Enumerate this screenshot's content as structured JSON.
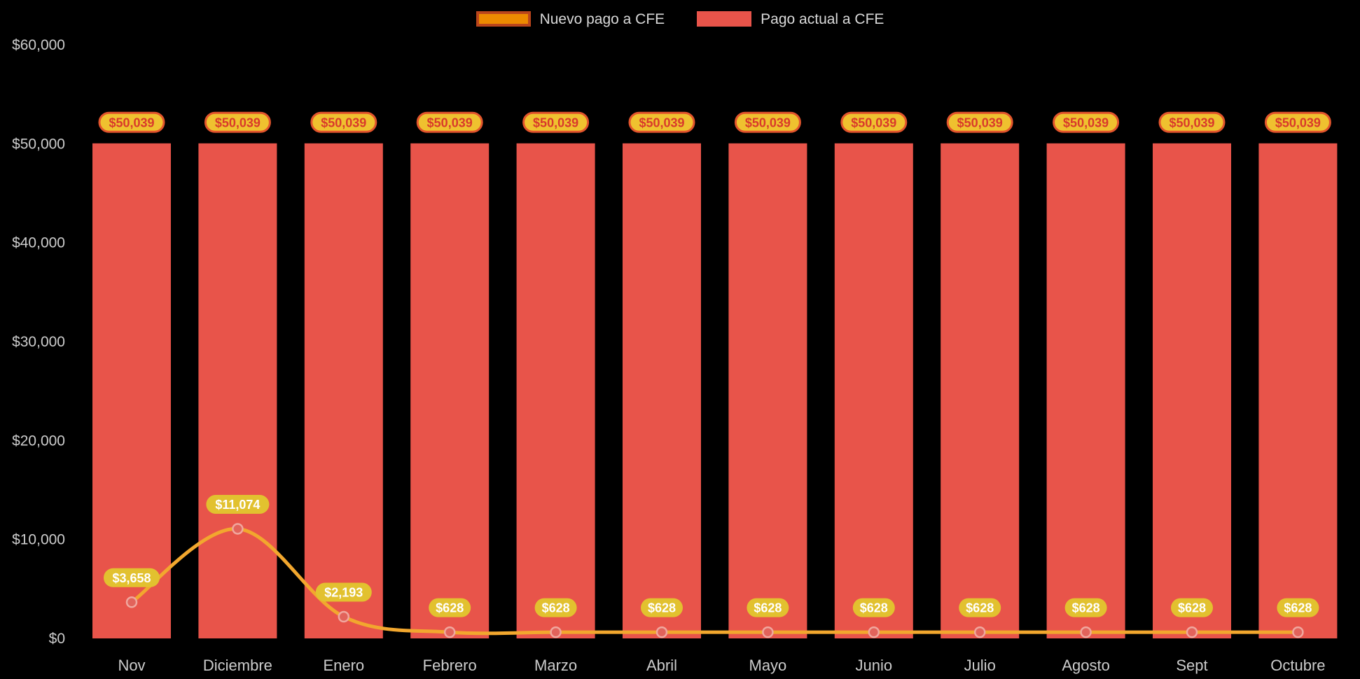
{
  "chart_data": {
    "type": "bar+line",
    "title": "",
    "categories": [
      "Nov",
      "Diciembre",
      "Enero",
      "Febrero",
      "Marzo",
      "Abril",
      "Mayo",
      "Junio",
      "Julio",
      "Agosto",
      "Sept",
      "Octubre"
    ],
    "series": [
      {
        "name": "Nuevo pago a CFE",
        "type": "line",
        "color": "#F2A72E",
        "swatch_fill": "#EC8A00",
        "swatch_border": "#BA451C",
        "marker_fill": "#E2635B",
        "marker_stroke": "#F0A79E",
        "label_bg": "#E2C12F",
        "label_text_color": "#FFFFFF",
        "values": [
          3658,
          11074,
          2193,
          628,
          628,
          628,
          628,
          628,
          628,
          628,
          628,
          628
        ],
        "labels": [
          "$3,658",
          "$11,074",
          "$2,193",
          "$628",
          "$628",
          "$628",
          "$628",
          "$628",
          "$628",
          "$628",
          "$628",
          "$628"
        ]
      },
      {
        "name": "Pago actual a CFE",
        "type": "bar",
        "color": "#E8544A",
        "label_bg": "#EFC12F",
        "label_border": "#E2542C",
        "label_text_color": "#D93A2B",
        "values": [
          50039,
          50039,
          50039,
          50039,
          50039,
          50039,
          50039,
          50039,
          50039,
          50039,
          50039,
          50039
        ],
        "labels": [
          "$50,039",
          "$50,039",
          "$50,039",
          "$50,039",
          "$50,039",
          "$50,039",
          "$50,039",
          "$50,039",
          "$50,039",
          "$50,039",
          "$50,039",
          "$50,039"
        ]
      }
    ],
    "ylim": [
      0,
      60000
    ],
    "yticks": [
      0,
      10000,
      20000,
      30000,
      40000,
      50000,
      60000
    ],
    "ytick_labels": [
      "$0",
      "$10,000",
      "$20,000",
      "$30,000",
      "$40,000",
      "$50,000",
      "$60,000"
    ],
    "grid": false,
    "legend_position": "top-center",
    "background": "#000000",
    "axis_text_color": "#CCCCCC",
    "legend_text_color": "#D9D9D9"
  }
}
